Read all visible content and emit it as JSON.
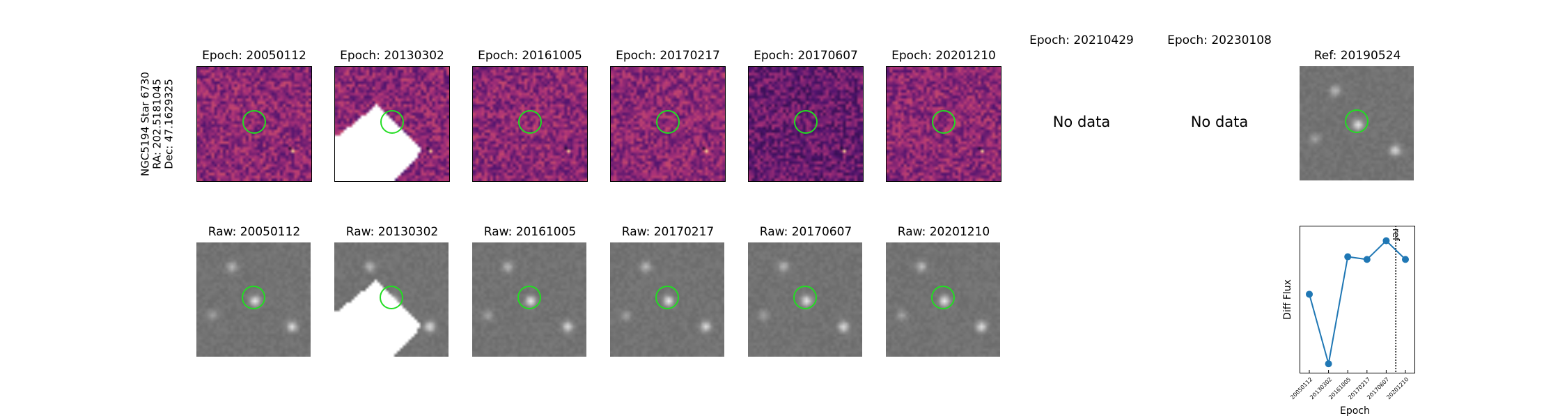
{
  "star_label": {
    "name": "NGC5194 Star 6730",
    "ra": "RA: 202.5181045",
    "dec": "Dec: 47.1629325"
  },
  "epoch_titles": [
    "Epoch: 20050112",
    "Epoch: 20130302",
    "Epoch: 20161005",
    "Epoch: 20170217",
    "Epoch: 20170607",
    "Epoch: 20201210",
    "Epoch: 20210429",
    "Epoch: 20230108"
  ],
  "raw_titles": [
    "Raw: 20050112",
    "Raw: 20130302",
    "Raw: 20161005",
    "Raw: 20170217",
    "Raw: 20170607",
    "Raw: 20201210"
  ],
  "ref_title": "Ref: 20190524",
  "no_data_text": [
    "No data",
    "No data"
  ],
  "colors": {
    "circle": "#22dd22",
    "series": "#1f77b4"
  },
  "chart_data": {
    "type": "line",
    "x": [
      "20050112",
      "20130302",
      "20161005",
      "20170217",
      "20170607",
      "20201210"
    ],
    "series": [
      {
        "name": "Diff Flux",
        "values": [
          0.54,
          0.02,
          0.82,
          0.8,
          0.94,
          0.8
        ]
      }
    ],
    "xlabel": "Epoch",
    "ylabel": "Diff Flux",
    "ylim": [
      0,
      1
    ],
    "vline": {
      "position": 4.5,
      "label": "ref",
      "style": "dotted"
    }
  }
}
